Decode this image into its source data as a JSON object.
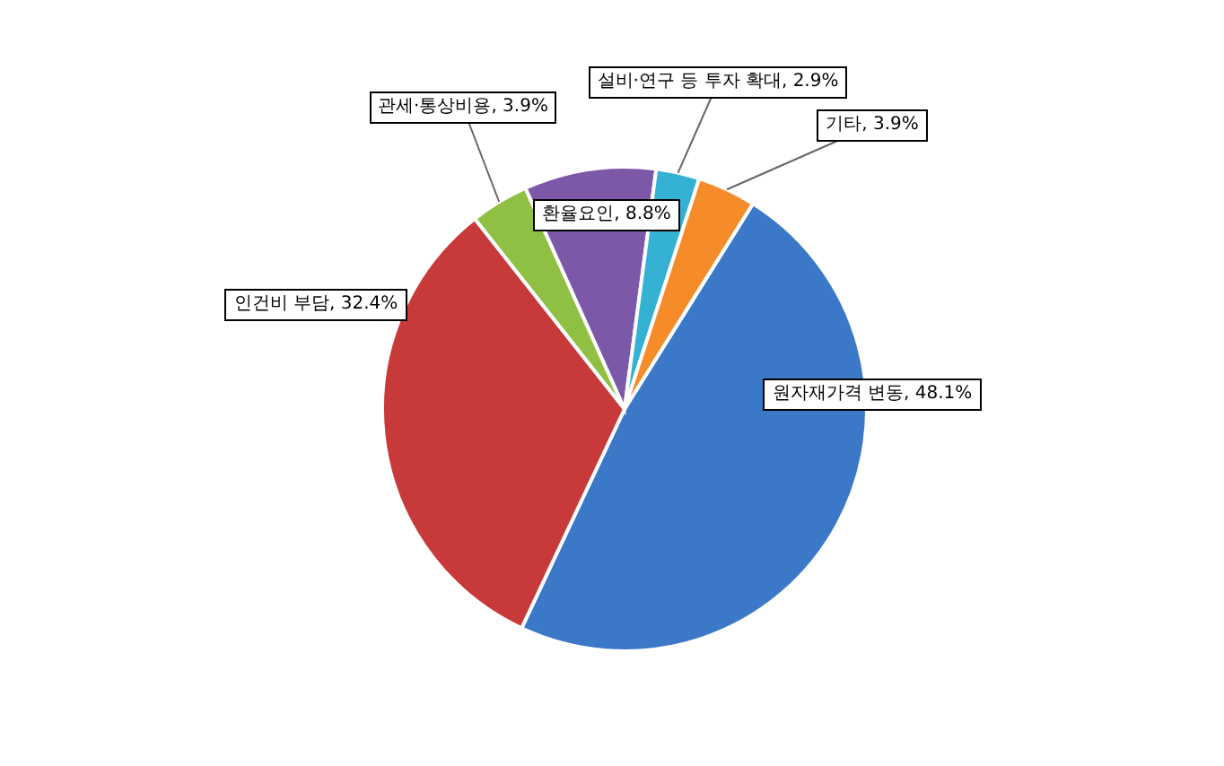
{
  "chart_data": {
    "type": "pie",
    "categories": [
      "원자재가격 변동",
      "인건비 부담",
      "관세·통상비용",
      "환율요인",
      "설비·연구 등 투자 확대",
      "기타"
    ],
    "values": [
      48.1,
      32.4,
      3.9,
      8.8,
      2.9,
      3.9
    ],
    "value_labels": [
      "48.1%",
      "32.4%",
      "3.9%",
      "8.8%",
      "2.9%",
      "3.9%"
    ],
    "colors": [
      "#3b78c8",
      "#c8393a",
      "#8fc043",
      "#7c58a8",
      "#35b2d3",
      "#f68b2a"
    ],
    "legend": false
  }
}
